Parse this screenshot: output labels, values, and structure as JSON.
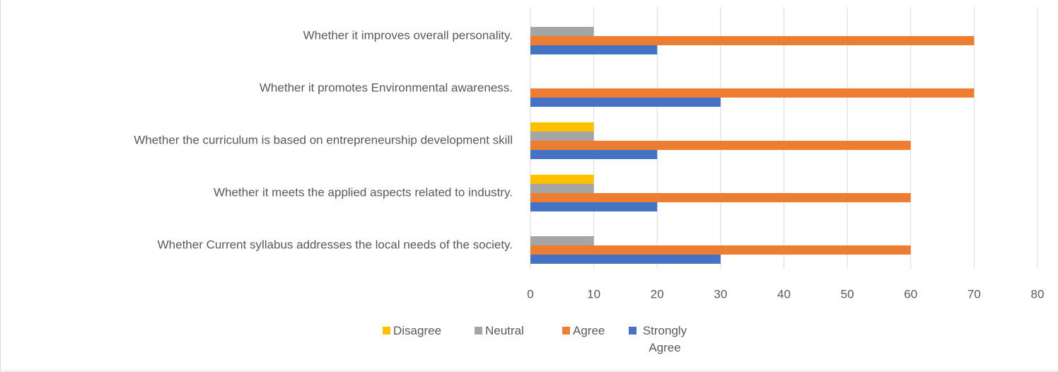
{
  "chart_data": {
    "type": "bar",
    "orientation": "horizontal",
    "categories": [
      "Whether Current syllabus addresses the local needs of the society.",
      "Whether it meets the applied aspects related to industry.",
      "Whether the curriculum is based on entrepreneurship development skill",
      "Whether it promotes Environmental awareness.",
      "Whether it improves overall personality."
    ],
    "series": [
      {
        "name": "Strongly Agree",
        "color": "#4472c4",
        "values": [
          30,
          20,
          20,
          30,
          20
        ]
      },
      {
        "name": "Agree",
        "color": "#ed7d31",
        "values": [
          60,
          60,
          60,
          70,
          70
        ]
      },
      {
        "name": "Neutral",
        "color": "#a5a5a5",
        "values": [
          10,
          10,
          10,
          0,
          10
        ]
      },
      {
        "name": "Disagree",
        "color": "#ffc000",
        "values": [
          0,
          10,
          10,
          0,
          0
        ]
      }
    ],
    "xlim": [
      0,
      80
    ],
    "xticks": [
      0,
      10,
      20,
      30,
      40,
      50,
      60,
      70,
      80
    ],
    "grid": true,
    "legend": "bottom"
  }
}
